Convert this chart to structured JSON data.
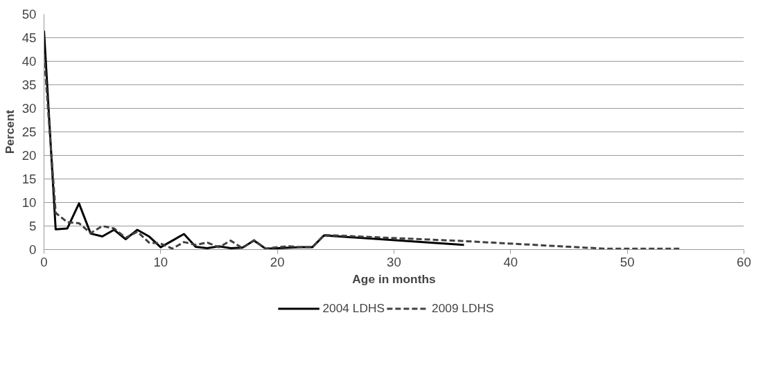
{
  "chart_data": {
    "type": "line",
    "xlabel": "Age in months",
    "ylabel": "Percent",
    "xlim": [
      0,
      60
    ],
    "xticks": [
      0,
      10,
      20,
      30,
      40,
      50,
      60
    ],
    "ylim": [
      0,
      50
    ],
    "yticks": [
      0,
      5,
      10,
      15,
      20,
      25,
      30,
      35,
      40,
      45,
      50
    ],
    "grid": "y",
    "legend": "bottom",
    "series": [
      {
        "name": "2004 LDHS",
        "color": "#000000",
        "line_style": "solid",
        "x": [
          0,
          1,
          2,
          3,
          4,
          5,
          6,
          7,
          8,
          9,
          10,
          11,
          12,
          13,
          14,
          15,
          16,
          17,
          18,
          19,
          20,
          21,
          22,
          23,
          24,
          36
        ],
        "values": [
          46.5,
          4.3,
          4.5,
          9.8,
          3.4,
          2.8,
          4.2,
          2.2,
          4.2,
          2.8,
          0.5,
          1.9,
          3.3,
          0.6,
          0.3,
          0.7,
          0.3,
          0.4,
          1.9,
          0.2,
          0.3,
          0.4,
          0.5,
          0.5,
          3.0,
          1.0
        ]
      },
      {
        "name": "2009 LDHS",
        "color": "#404040",
        "line_style": "dashed",
        "x": [
          0,
          1,
          2,
          3,
          4,
          5,
          6,
          7,
          8,
          9,
          10,
          11,
          12,
          13,
          14,
          15,
          16,
          17,
          18,
          19,
          20,
          21,
          22,
          23,
          24,
          36,
          48,
          54.6
        ],
        "values": [
          41.5,
          7.8,
          5.8,
          5.6,
          3.5,
          5.0,
          4.5,
          2.5,
          3.8,
          1.5,
          1.3,
          0.2,
          1.6,
          1.0,
          1.5,
          0.5,
          1.9,
          0.3,
          2.0,
          0.2,
          0.5,
          0.7,
          0.5,
          0.5,
          3.1,
          1.8,
          0.2,
          0.2
        ]
      }
    ]
  }
}
